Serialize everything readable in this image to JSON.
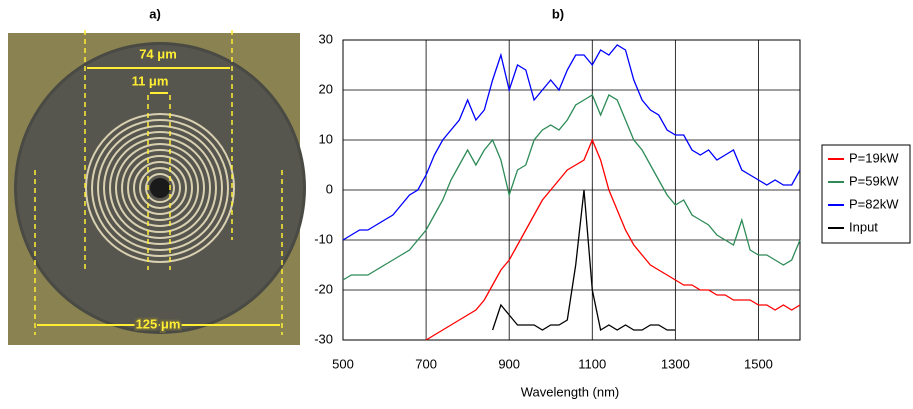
{
  "panel_a": {
    "label": "a)",
    "dimensions": [
      "74 μm",
      "11 μm",
      "125 μm"
    ]
  },
  "chart_data": {
    "type": "line",
    "title": "b)",
    "x_label": "Wavelength (nm)",
    "x": [
      500,
      520,
      540,
      560,
      580,
      600,
      620,
      640,
      660,
      680,
      700,
      720,
      740,
      760,
      780,
      800,
      820,
      840,
      860,
      880,
      900,
      920,
      940,
      960,
      980,
      1000,
      1020,
      1040,
      1060,
      1080,
      1100,
      1120,
      1140,
      1160,
      1180,
      1200,
      1220,
      1240,
      1260,
      1280,
      1300,
      1320,
      1340,
      1360,
      1380,
      1400,
      1420,
      1440,
      1460,
      1480,
      1500,
      1520,
      1540,
      1560,
      1580,
      1600
    ],
    "series": [
      {
        "name": "P=19kW",
        "color": "#ff0000",
        "values": [
          null,
          null,
          null,
          null,
          null,
          null,
          null,
          null,
          null,
          null,
          -30,
          -29,
          -28,
          -27,
          -26,
          -25,
          -24,
          -22,
          -19,
          -16,
          -14,
          -11,
          -8,
          -5,
          -2,
          0,
          2,
          4,
          5,
          6,
          10,
          6,
          0,
          -4,
          -8,
          -11,
          -13,
          -15,
          -16,
          -17,
          -18,
          -19,
          -19,
          -20,
          -20,
          -21,
          -21,
          -22,
          -22,
          -22,
          -23,
          -23,
          -24,
          -23,
          -24,
          -23
        ]
      },
      {
        "name": "P=59kW",
        "color": "#2e8b57",
        "values": [
          -18,
          -17,
          -17,
          -17,
          -16,
          -15,
          -14,
          -13,
          -12,
          -10,
          -8,
          -5,
          -2,
          2,
          5,
          8,
          5,
          8,
          10,
          6,
          -1,
          4,
          5,
          10,
          12,
          13,
          12,
          14,
          17,
          18,
          19,
          15,
          19,
          18,
          14,
          10,
          8,
          5,
          2,
          -1,
          -3,
          -2,
          -5,
          -6,
          -7,
          -9,
          -10,
          -11,
          -6,
          -12,
          -13,
          -13,
          -14,
          -15,
          -14,
          -10
        ]
      },
      {
        "name": "P=82kW",
        "color": "#0000ff",
        "values": [
          -10,
          -9,
          -8,
          -8,
          -7,
          -6,
          -5,
          -3,
          -1,
          0,
          3,
          7,
          10,
          12,
          14,
          18,
          14,
          16,
          22,
          27,
          20,
          25,
          24,
          18,
          20,
          22,
          20,
          24,
          27,
          27,
          25,
          28,
          27,
          29,
          28,
          22,
          18,
          16,
          15,
          12,
          11,
          11,
          8,
          7,
          8,
          6,
          7,
          8,
          4,
          3,
          2,
          1,
          2,
          1,
          1,
          4
        ]
      },
      {
        "name": "Input",
        "color": "#000000",
        "values": [
          null,
          null,
          null,
          null,
          null,
          null,
          null,
          null,
          null,
          null,
          null,
          null,
          null,
          null,
          null,
          null,
          null,
          null,
          -28,
          -23,
          -25,
          -27,
          -27,
          -27,
          -28,
          -27,
          -27,
          -26,
          -15,
          0,
          -20,
          -28,
          -27,
          -28,
          -27,
          -28,
          -28,
          -27,
          -27,
          -28,
          -28,
          null,
          null,
          null,
          null,
          null,
          null,
          null,
          null,
          null,
          null,
          null,
          null,
          null,
          null,
          null
        ]
      }
    ],
    "xlim": [
      500,
      1600
    ],
    "xticks": [
      500,
      700,
      900,
      1100,
      1300,
      1500
    ],
    "ylim": [
      -30,
      30
    ],
    "yticks": [
      -30,
      -20,
      -10,
      0,
      10,
      20,
      30
    ],
    "grid": true,
    "legend": "right"
  }
}
